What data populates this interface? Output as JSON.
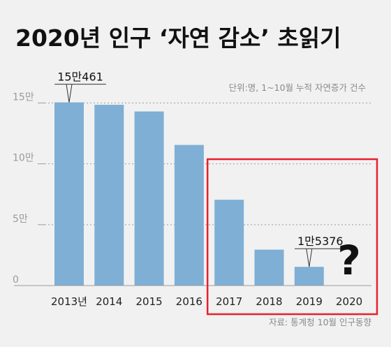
{
  "title": "2020년 인구 ‘자연 감소’ 초읽기",
  "unit_note": "단위:명, 1~10월 누적 자연증가 건수",
  "source": "자료: 통계청 10월 인구동향",
  "colors": {
    "bar": "#7fafd5",
    "highlight_box": "#e8212b",
    "background": "#f1f1f1"
  },
  "chart_data": {
    "type": "bar",
    "categories": [
      "2013년",
      "2014",
      "2015",
      "2016",
      "2017",
      "2018",
      "2019",
      "2020"
    ],
    "values": [
      150461,
      148500,
      143000,
      115500,
      70500,
      29500,
      15376,
      null
    ],
    "ylim": [
      0,
      160000
    ],
    "yticks": [
      {
        "value": 0,
        "label": "0"
      },
      {
        "value": 50000,
        "label": "5만"
      },
      {
        "value": 100000,
        "label": "10만"
      },
      {
        "value": 150000,
        "label": "15만"
      }
    ],
    "grid": true,
    "annotations": [
      {
        "category": "2013년",
        "label": "15만461"
      },
      {
        "category": "2019",
        "label": "1만5376"
      },
      {
        "category": "2020",
        "label": "?"
      }
    ],
    "highlight_categories": [
      "2017",
      "2018",
      "2019",
      "2020"
    ]
  }
}
